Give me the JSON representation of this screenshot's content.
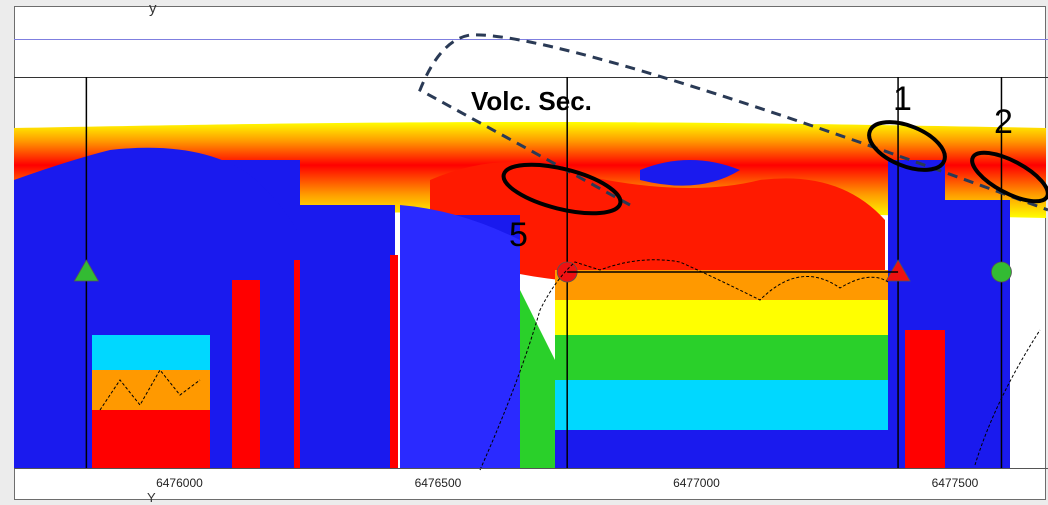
{
  "chart_data": {
    "type": "heatmap",
    "title": "",
    "xlabel": "Y",
    "ylabel": "y",
    "xlim": [
      6475680,
      6477680
    ],
    "x_ticks": [
      6476000,
      6476500,
      6477000,
      6477500
    ],
    "x_tick_labels": [
      "6476000",
      "6476500",
      "6477000",
      "6477500"
    ],
    "colorscale": [
      "#1a1aee",
      "#00d8ff",
      "#2ad02a",
      "#ffff00",
      "#ff9900",
      "#ff0000"
    ],
    "wells": [
      {
        "x": 6475820,
        "marker": "triangle",
        "color": "#33bb33"
      },
      {
        "x": 6476750,
        "marker": "circle",
        "color": "#ee1111"
      },
      {
        "x": 6477390,
        "marker": "triangle",
        "color": "#ee1111"
      },
      {
        "x": 6477590,
        "marker": "circle",
        "color": "#33bb33"
      }
    ],
    "annotations": [
      {
        "label": "Volc. Sec."
      },
      {
        "label": "1"
      },
      {
        "label": "2"
      },
      {
        "label": "5"
      }
    ]
  }
}
